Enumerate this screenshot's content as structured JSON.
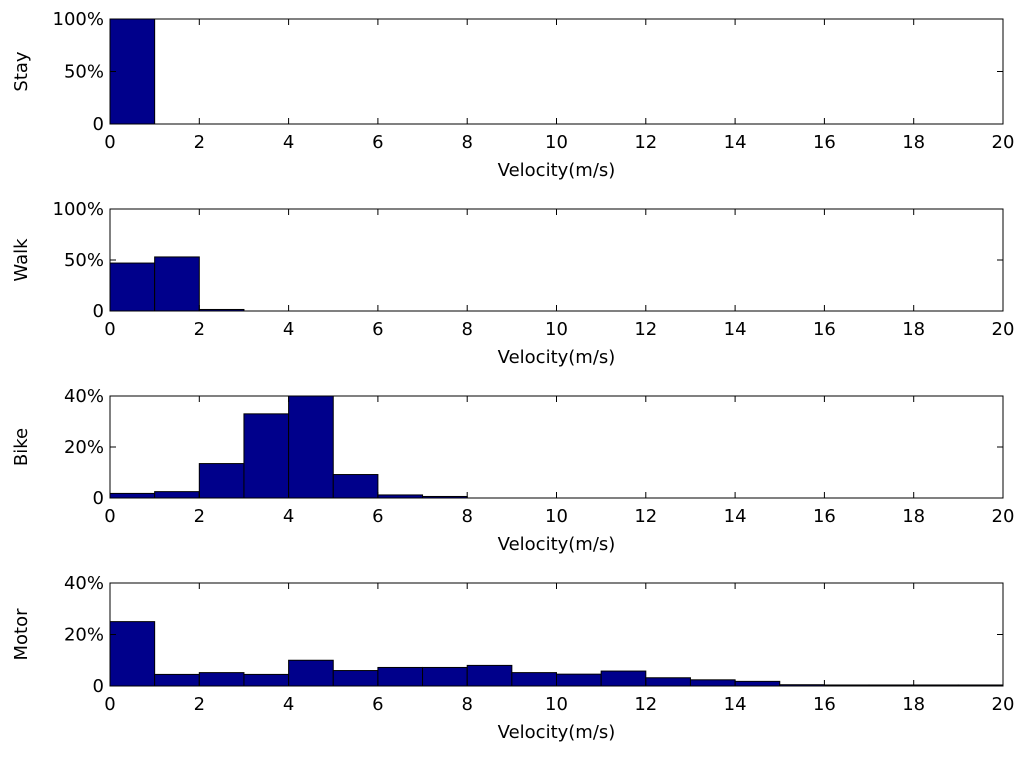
{
  "chart_data": [
    {
      "type": "bar",
      "ylabel": "Stay",
      "xlabel": "Velocity(m/s)",
      "xlim": [
        0,
        20
      ],
      "ylim": [
        0,
        100
      ],
      "x_ticks": [
        "0",
        "2",
        "4",
        "6",
        "8",
        "10",
        "12",
        "14",
        "16",
        "18",
        "20"
      ],
      "y_ticks": [
        {
          "value": 0,
          "label": "0"
        },
        {
          "value": 50,
          "label": "50%"
        },
        {
          "value": 100,
          "label": "100%"
        }
      ],
      "bin_width": 1,
      "bin_starts": [
        0
      ],
      "values": [
        100
      ],
      "bar_color": "#00008B"
    },
    {
      "type": "bar",
      "ylabel": "Walk",
      "xlabel": "Velocity(m/s)",
      "xlim": [
        0,
        20
      ],
      "ylim": [
        0,
        100
      ],
      "x_ticks": [
        "0",
        "2",
        "4",
        "6",
        "8",
        "10",
        "12",
        "14",
        "16",
        "18",
        "20"
      ],
      "y_ticks": [
        {
          "value": 0,
          "label": "0"
        },
        {
          "value": 50,
          "label": "50%"
        },
        {
          "value": 100,
          "label": "100%"
        }
      ],
      "bin_width": 1,
      "bin_starts": [
        0,
        1,
        2
      ],
      "values": [
        47,
        53,
        1.5
      ],
      "bar_color": "#00008B"
    },
    {
      "type": "bar",
      "ylabel": "Bike",
      "xlabel": "Velocity(m/s)",
      "xlim": [
        0,
        20
      ],
      "ylim": [
        0,
        40
      ],
      "x_ticks": [
        "0",
        "2",
        "4",
        "6",
        "8",
        "10",
        "12",
        "14",
        "16",
        "18",
        "20"
      ],
      "y_ticks": [
        {
          "value": 0,
          "label": "0"
        },
        {
          "value": 20,
          "label": "20%"
        },
        {
          "value": 40,
          "label": "40%"
        }
      ],
      "bin_width": 1,
      "bin_starts": [
        0,
        1,
        2,
        3,
        4,
        5,
        6,
        7
      ],
      "values": [
        1.8,
        2.5,
        13.5,
        33,
        40,
        9.2,
        1.2,
        0.6
      ],
      "bar_color": "#00008B"
    },
    {
      "type": "bar",
      "ylabel": "Motor",
      "xlabel": "Velocity(m/s)",
      "xlim": [
        0,
        20
      ],
      "ylim": [
        0,
        40
      ],
      "x_ticks": [
        "0",
        "2",
        "4",
        "6",
        "8",
        "10",
        "12",
        "14",
        "16",
        "18",
        "20"
      ],
      "y_ticks": [
        {
          "value": 0,
          "label": "0"
        },
        {
          "value": 20,
          "label": "20%"
        },
        {
          "value": 40,
          "label": "40%"
        }
      ],
      "bin_width": 1,
      "bin_starts": [
        0,
        1,
        2,
        3,
        4,
        5,
        6,
        7,
        8,
        9,
        10,
        11,
        12,
        13,
        14,
        15,
        16,
        17,
        18,
        19
      ],
      "values": [
        25,
        4.5,
        5.2,
        4.5,
        10,
        6,
        7.2,
        7.2,
        8,
        5.2,
        4.6,
        5.8,
        3.2,
        2.4,
        1.8,
        0.5,
        0.4,
        0.4,
        0.4,
        0.4
      ],
      "bar_color": "#00008B"
    }
  ]
}
